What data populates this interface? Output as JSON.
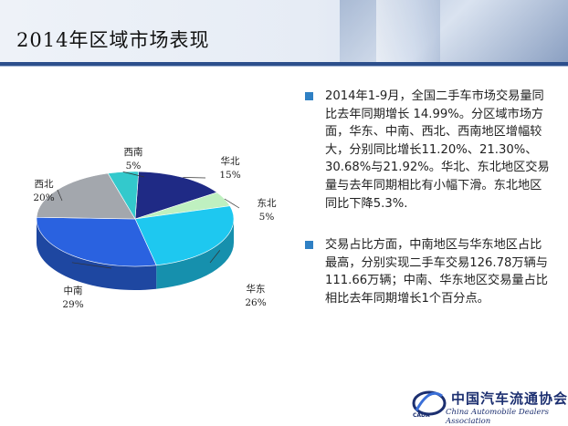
{
  "page": {
    "title": "2014年区域市场表现"
  },
  "bullets": [
    {
      "text": "2014年1-9月，全国二手车市场交易量同比去年同期增长 14.99%。分区域市场方面，华东、中南、西北、西南地区增幅较大，分别同比增长11.20%、21.30%、30.68%与21.92%。华北、东北地区交易量与去年同期相比有小幅下滑。东北地区同比下降5.3%."
    },
    {
      "text": "交易占比方面，中南地区与华东地区占比最高，分别实现二手车交易126.78万辆与 111.66万辆；中南、华东地区交易量占比相比去年同期增长1个百分点。"
    }
  ],
  "chart_data": {
    "type": "pie",
    "categories": [
      "华北",
      "东北",
      "华东",
      "中南",
      "西北",
      "西南"
    ],
    "values": [
      15,
      5,
      26,
      29,
      20,
      5
    ],
    "value_labels": [
      "15%",
      "5%",
      "26%",
      "29%",
      "20%",
      "5%"
    ],
    "colors": [
      "#1f2a85",
      "#bff0c0",
      "#1ec8f0",
      "#2a62e0",
      "#a3a7ad",
      "#33c9cc"
    ],
    "style": "3d"
  },
  "footer": {
    "org_cn": "中国汽车流通协会",
    "org_en": "China Automobile Dealers Association",
    "abbr": "CADA",
    "accent": "#1c2f70"
  },
  "theme": {
    "bullet_color": "#2f80c4",
    "rule_color": "#2c4f8c"
  }
}
